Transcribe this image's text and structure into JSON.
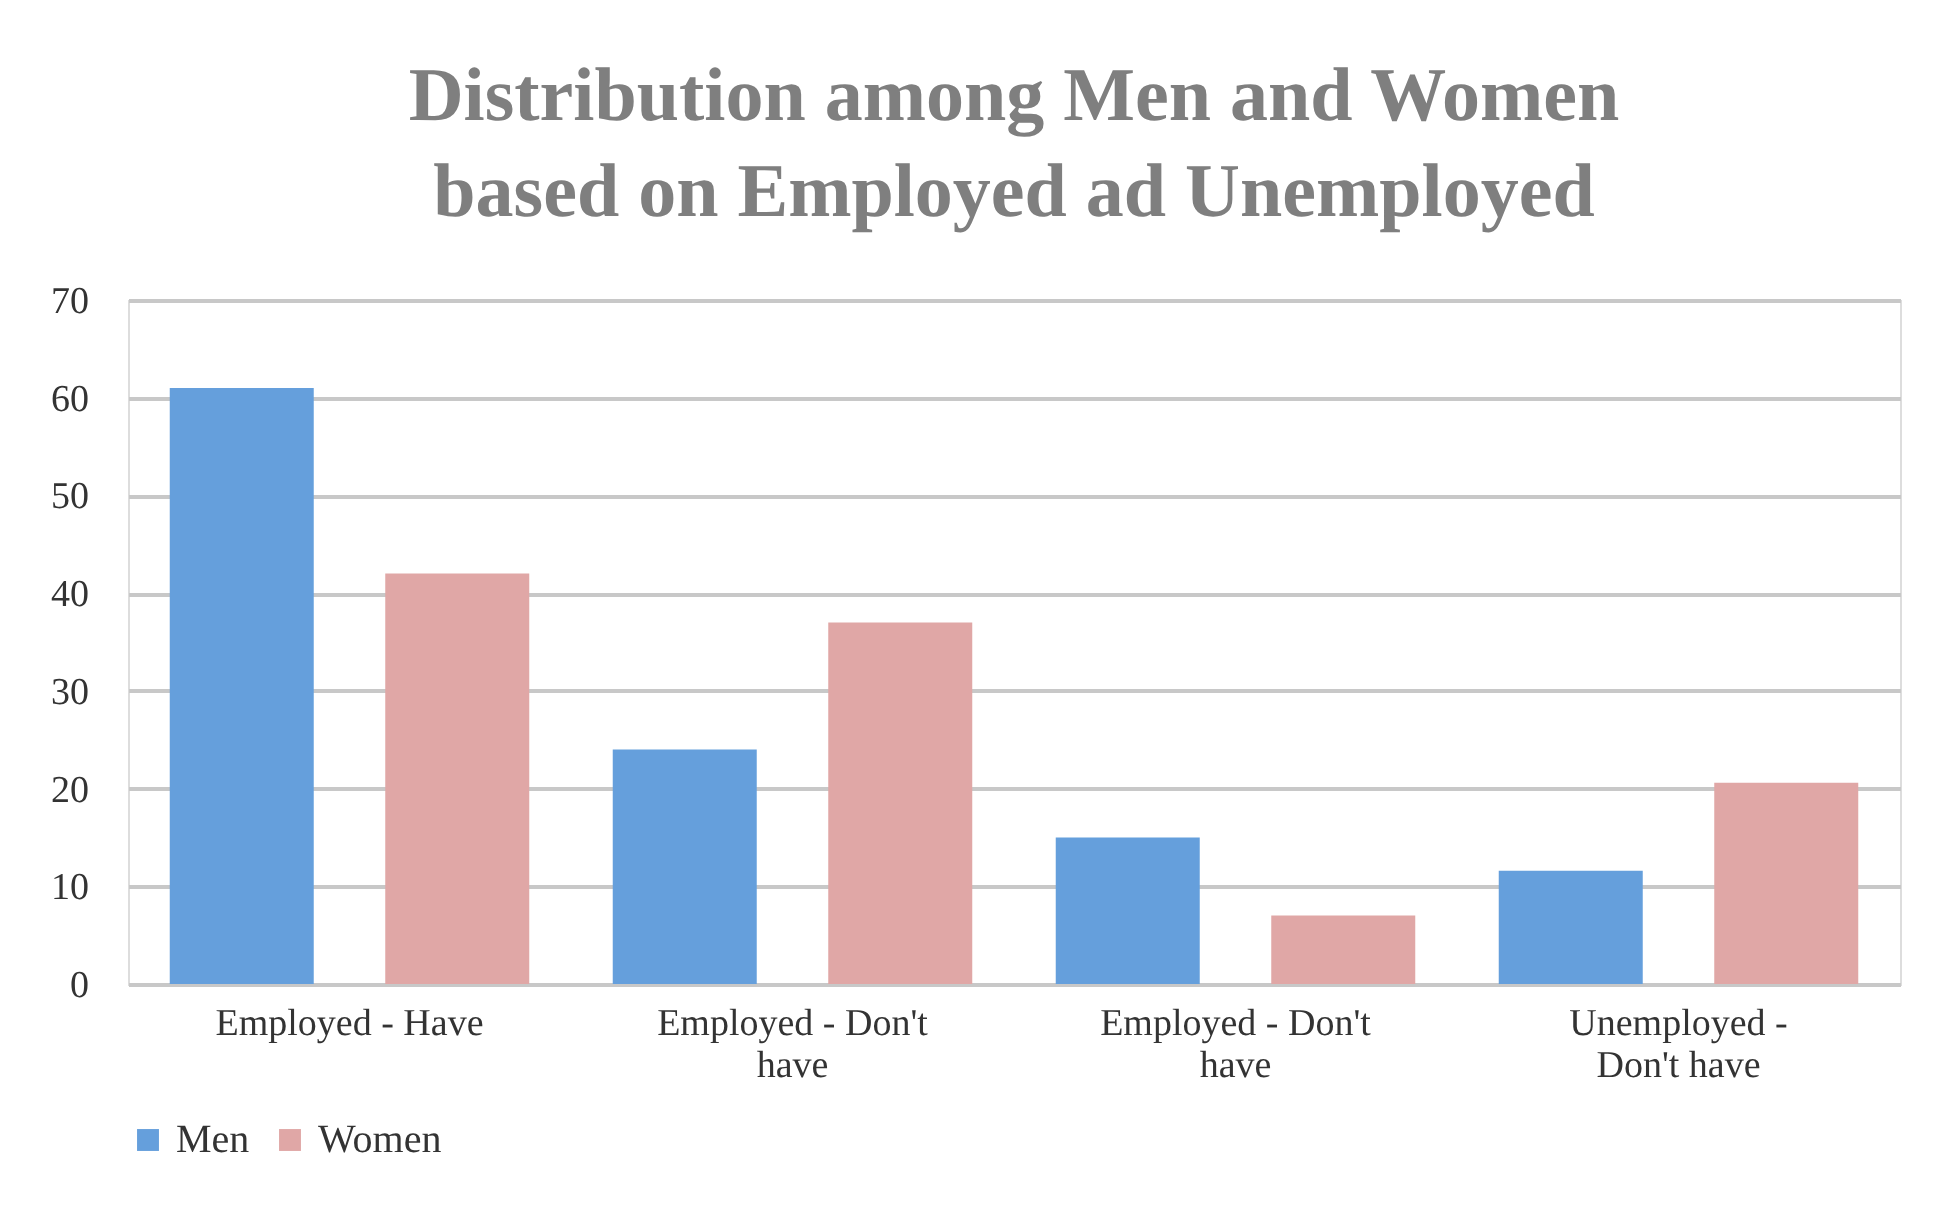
{
  "chart_data": {
    "type": "bar",
    "title": "Distribution among Men and Women based on Employed ad Unemployed",
    "categories": [
      "Employed - Have",
      "Employed - Don't have",
      "Employed - Don't have",
      "Unemployed - Don't have"
    ],
    "series": [
      {
        "name": "Men",
        "color": "#659fdc",
        "values": [
          61,
          24,
          15,
          11.6
        ]
      },
      {
        "name": "Women",
        "color": "#e0a7a6",
        "values": [
          42,
          37,
          7,
          20.6
        ]
      }
    ],
    "ylim": [
      0,
      70
    ],
    "yticks": [
      0,
      10,
      20,
      30,
      40,
      50,
      60,
      70
    ],
    "grid": "y",
    "legend": "bottom"
  }
}
